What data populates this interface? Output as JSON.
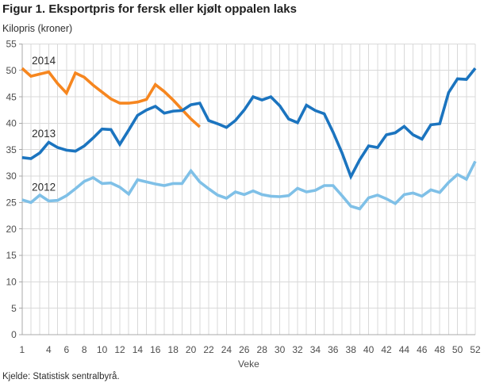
{
  "page": {
    "source": "Kjelde: Statistisk sentralbyrå."
  },
  "chart_data": {
    "type": "line",
    "title": "Figur 1. Eksportpris for fersk eller kjølt oppalen laks",
    "ylabel": "Kilopris (kroner)",
    "xlabel": "Veke",
    "ylim": [
      0,
      55
    ],
    "ytick_step": 5,
    "yticks": [
      0,
      5,
      10,
      15,
      20,
      25,
      30,
      35,
      40,
      45,
      50,
      55
    ],
    "x_range": [
      1,
      52
    ],
    "xticks": [
      1,
      4,
      6,
      8,
      10,
      12,
      14,
      16,
      18,
      20,
      22,
      24,
      26,
      28,
      30,
      32,
      34,
      36,
      38,
      40,
      42,
      44,
      46,
      48,
      50,
      52
    ],
    "grid": true,
    "legend_position": "inline-labels",
    "series": [
      {
        "name": "2012",
        "color": "#7fc0e7",
        "start_week": 1,
        "values": [
          25.5,
          25.0,
          26.4,
          25.3,
          25.4,
          26.3,
          27.6,
          29.0,
          29.7,
          28.6,
          28.7,
          27.9,
          26.6,
          29.3,
          28.9,
          28.5,
          28.2,
          28.6,
          28.6,
          31.0,
          28.9,
          27.6,
          26.4,
          25.8,
          27.0,
          26.5,
          27.2,
          26.5,
          26.2,
          26.1,
          26.3,
          27.7,
          27.0,
          27.3,
          28.2,
          28.2,
          26.3,
          24.3,
          23.8,
          25.9,
          26.4,
          25.7,
          24.8,
          26.5,
          26.8,
          26.2,
          27.4,
          26.9,
          28.8,
          30.3,
          29.4,
          32.8
        ]
      },
      {
        "name": "2014",
        "color": "#f6861f",
        "start_week": 1,
        "values": [
          50.4,
          48.9,
          49.3,
          49.7,
          47.5,
          45.7,
          49.5,
          48.7,
          47.2,
          45.9,
          44.6,
          43.8,
          43.8,
          44.0,
          44.5,
          47.3,
          46.0,
          44.4,
          42.6,
          40.8,
          39.3
        ]
      },
      {
        "name": "2013",
        "color": "#1b74bf",
        "start_week": 1,
        "values": [
          33.5,
          33.3,
          34.4,
          36.4,
          35.4,
          34.9,
          34.7,
          35.7,
          37.2,
          38.9,
          38.8,
          36.0,
          38.7,
          41.5,
          42.5,
          43.2,
          41.9,
          42.3,
          42.4,
          43.5,
          43.8,
          40.5,
          39.9,
          39.2,
          40.5,
          42.5,
          45.0,
          44.4,
          45.0,
          43.3,
          40.8,
          40.1,
          43.4,
          42.4,
          41.8,
          38.3,
          34.4,
          29.9,
          33.1,
          35.7,
          35.4,
          37.8,
          38.2,
          39.4,
          37.8,
          37.0,
          39.7,
          39.9,
          45.8,
          48.4,
          48.3,
          50.4
        ]
      }
    ],
    "series_label_anchors": {
      "2014": {
        "week": 2.1,
        "value": 51.8
      },
      "2013": {
        "week": 2.1,
        "value": 38.0
      },
      "2012": {
        "week": 2.1,
        "value": 27.9
      }
    },
    "colors": {
      "gridline": "#d9d9d9",
      "axis": "#a8a8a8",
      "tick_label": "#4d4d4d",
      "text": "#2e2e2e"
    }
  }
}
